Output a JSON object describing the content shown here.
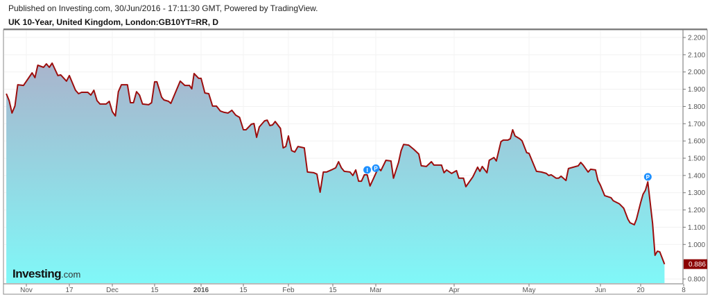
{
  "header": {
    "published": "Published on Investing.com, 30/Jun/2016 - 17:11:30 GMT, Powered by TradingView.",
    "symbol": "UK 10-Year, United Kingdom, London:GB10YT=RR, D"
  },
  "logo": {
    "main": "Investing",
    "suffix": ".com"
  },
  "colors": {
    "line": "#9b0d0d",
    "fill_top": "#a9b4cc",
    "fill_bottom": "#80f8f8",
    "price_label": "#8b0000",
    "marker": "#1e90ff"
  },
  "chart_data": {
    "type": "area",
    "title": "",
    "ylim": [
      0.75,
      2.25
    ],
    "y_ticks": [
      "2.200",
      "2.100",
      "2.000",
      "1.900",
      "1.800",
      "1.700",
      "1.600",
      "1.500",
      "1.400",
      "1.300",
      "1.200",
      "1.100",
      "1.000",
      "0.800"
    ],
    "x_ticks": [
      {
        "label": "Nov",
        "date": "2015-11-02"
      },
      {
        "label": "17",
        "date": "2015-11-17"
      },
      {
        "label": "Dec",
        "date": "2015-12-01"
      },
      {
        "label": "15",
        "date": "2015-12-15"
      },
      {
        "label": "2016",
        "date": "2016-01-04",
        "bold": true
      },
      {
        "label": "15",
        "date": "2016-01-15"
      },
      {
        "label": "Feb",
        "date": "2016-02-01"
      },
      {
        "label": "15",
        "date": "2016-02-15"
      },
      {
        "label": "Mar",
        "date": "2016-03-01"
      },
      {
        "label": "Apr",
        "date": "2016-04-01"
      },
      {
        "label": "May",
        "date": "2016-05-03"
      },
      {
        "label": "Jun",
        "date": "2016-06-01"
      },
      {
        "label": "20",
        "date": "2016-06-20"
      },
      {
        "label": "8",
        "date": "2016-07-08"
      }
    ],
    "last_value": "0.886",
    "grid": true,
    "events": [
      {
        "label": "I",
        "date": "2016-02-27",
        "value": 1.42
      },
      {
        "label": "P",
        "date": "2016-03-01",
        "value": 1.43
      },
      {
        "label": "P",
        "date": "2016-06-23",
        "value": 1.38
      }
    ],
    "points": [
      [
        "2015-10-26",
        1.874
      ],
      [
        "2015-10-27",
        1.834
      ],
      [
        "2015-10-28",
        1.762
      ],
      [
        "2015-10-29",
        1.802
      ],
      [
        "2015-10-30",
        1.926
      ],
      [
        "2015-11-01",
        1.922
      ],
      [
        "2015-11-04",
        1.995
      ],
      [
        "2015-11-05",
        1.967
      ],
      [
        "2015-11-06",
        2.039
      ],
      [
        "2015-11-08",
        2.027
      ],
      [
        "2015-11-09",
        2.047
      ],
      [
        "2015-11-10",
        2.027
      ],
      [
        "2015-11-11",
        2.051
      ],
      [
        "2015-11-13",
        1.979
      ],
      [
        "2015-11-14",
        1.983
      ],
      [
        "2015-11-16",
        1.947
      ],
      [
        "2015-11-17",
        1.979
      ],
      [
        "2015-11-19",
        1.894
      ],
      [
        "2015-11-20",
        1.874
      ],
      [
        "2015-11-21",
        1.882
      ],
      [
        "2015-11-23",
        1.882
      ],
      [
        "2015-11-24",
        1.866
      ],
      [
        "2015-11-25",
        1.894
      ],
      [
        "2015-11-26",
        1.834
      ],
      [
        "2015-11-27",
        1.814
      ],
      [
        "2015-11-29",
        1.814
      ],
      [
        "2015-11-30",
        1.83
      ],
      [
        "2015-12-01",
        1.77
      ],
      [
        "2015-12-02",
        1.745
      ],
      [
        "2015-12-03",
        1.886
      ],
      [
        "2015-12-04",
        1.926
      ],
      [
        "2015-12-06",
        1.926
      ],
      [
        "2015-12-07",
        1.822
      ],
      [
        "2015-12-08",
        1.822
      ],
      [
        "2015-12-09",
        1.886
      ],
      [
        "2015-12-10",
        1.866
      ],
      [
        "2015-12-11",
        1.814
      ],
      [
        "2015-12-13",
        1.81
      ],
      [
        "2015-12-14",
        1.822
      ],
      [
        "2015-12-15",
        1.943
      ],
      [
        "2015-12-16",
        1.943
      ],
      [
        "2015-12-18",
        1.854
      ],
      [
        "2015-12-19",
        1.838
      ],
      [
        "2015-12-21",
        1.83
      ],
      [
        "2015-12-22",
        1.818
      ],
      [
        "2015-12-26",
        1.947
      ],
      [
        "2015-12-28",
        1.922
      ],
      [
        "2015-12-30",
        1.922
      ],
      [
        "2015-12-31",
        1.902
      ],
      [
        "2016-01-01",
        1.991
      ],
      [
        "2016-01-03",
        1.963
      ],
      [
        "2016-01-04",
        1.963
      ],
      [
        "2016-01-05",
        1.878
      ],
      [
        "2016-01-06",
        1.874
      ],
      [
        "2016-01-07",
        1.802
      ],
      [
        "2016-01-08",
        1.802
      ],
      [
        "2016-01-09",
        1.774
      ],
      [
        "2016-01-10",
        1.766
      ],
      [
        "2016-01-11",
        1.762
      ],
      [
        "2016-01-12",
        1.778
      ],
      [
        "2016-01-13",
        1.75
      ],
      [
        "2016-01-14",
        1.737
      ],
      [
        "2016-01-15",
        1.665
      ],
      [
        "2016-01-16",
        1.665
      ],
      [
        "2016-01-18",
        1.697
      ],
      [
        "2016-01-19",
        1.701
      ],
      [
        "2016-01-20",
        1.621
      ],
      [
        "2016-01-21",
        1.681
      ],
      [
        "2016-01-23",
        1.717
      ],
      [
        "2016-01-24",
        1.721
      ],
      [
        "2016-01-25",
        1.689
      ],
      [
        "2016-01-26",
        1.693
      ],
      [
        "2016-01-27",
        1.713
      ],
      [
        "2016-01-29",
        1.673
      ],
      [
        "2016-01-30",
        1.56
      ],
      [
        "2016-01-31",
        1.568
      ],
      [
        "2016-02-01",
        1.629
      ],
      [
        "2016-02-02",
        1.544
      ],
      [
        "2016-02-03",
        1.536
      ],
      [
        "2016-02-04",
        1.568
      ],
      [
        "2016-02-06",
        1.56
      ],
      [
        "2016-02-07",
        1.42
      ],
      [
        "2016-02-09",
        1.416
      ],
      [
        "2016-02-10",
        1.408
      ],
      [
        "2016-02-11",
        1.303
      ],
      [
        "2016-02-12",
        1.42
      ],
      [
        "2016-02-13",
        1.42
      ],
      [
        "2016-02-15",
        1.436
      ],
      [
        "2016-02-16",
        1.444
      ],
      [
        "2016-02-17",
        1.48
      ],
      [
        "2016-02-18",
        1.444
      ],
      [
        "2016-02-19",
        1.424
      ],
      [
        "2016-02-21",
        1.42
      ],
      [
        "2016-02-22",
        1.4
      ],
      [
        "2016-02-23",
        1.432
      ],
      [
        "2016-02-24",
        1.367
      ],
      [
        "2016-02-25",
        1.367
      ],
      [
        "2016-02-26",
        1.404
      ],
      [
        "2016-02-27",
        1.404
      ],
      [
        "2016-02-28",
        1.339
      ],
      [
        "2016-03-01",
        1.412
      ],
      [
        "2016-03-02",
        1.444
      ],
      [
        "2016-03-03",
        1.428
      ],
      [
        "2016-03-05",
        1.488
      ],
      [
        "2016-03-07",
        1.484
      ],
      [
        "2016-03-08",
        1.384
      ],
      [
        "2016-03-10",
        1.476
      ],
      [
        "2016-03-11",
        1.544
      ],
      [
        "2016-03-12",
        1.58
      ],
      [
        "2016-03-14",
        1.576
      ],
      [
        "2016-03-16",
        1.552
      ],
      [
        "2016-03-18",
        1.524
      ],
      [
        "2016-03-19",
        1.456
      ],
      [
        "2016-03-21",
        1.452
      ],
      [
        "2016-03-23",
        1.48
      ],
      [
        "2016-03-24",
        1.46
      ],
      [
        "2016-03-27",
        1.46
      ],
      [
        "2016-03-28",
        1.416
      ],
      [
        "2016-03-29",
        1.432
      ],
      [
        "2016-03-31",
        1.412
      ],
      [
        "2016-04-02",
        1.428
      ],
      [
        "2016-04-03",
        1.384
      ],
      [
        "2016-04-05",
        1.384
      ],
      [
        "2016-04-06",
        1.335
      ],
      [
        "2016-04-09",
        1.392
      ],
      [
        "2016-04-11",
        1.448
      ],
      [
        "2016-04-12",
        1.424
      ],
      [
        "2016-04-13",
        1.452
      ],
      [
        "2016-04-15",
        1.416
      ],
      [
        "2016-04-16",
        1.488
      ],
      [
        "2016-04-18",
        1.504
      ],
      [
        "2016-04-19",
        1.484
      ],
      [
        "2016-04-21",
        1.596
      ],
      [
        "2016-04-22",
        1.605
      ],
      [
        "2016-04-24",
        1.605
      ],
      [
        "2016-04-25",
        1.613
      ],
      [
        "2016-04-26",
        1.665
      ],
      [
        "2016-04-27",
        1.629
      ],
      [
        "2016-04-29",
        1.613
      ],
      [
        "2016-04-30",
        1.601
      ],
      [
        "2016-05-02",
        1.532
      ],
      [
        "2016-05-03",
        1.528
      ],
      [
        "2016-05-06",
        1.424
      ],
      [
        "2016-05-08",
        1.42
      ],
      [
        "2016-05-10",
        1.412
      ],
      [
        "2016-05-11",
        1.4
      ],
      [
        "2016-05-12",
        1.404
      ],
      [
        "2016-05-14",
        1.384
      ],
      [
        "2016-05-15",
        1.384
      ],
      [
        "2016-05-16",
        1.396
      ],
      [
        "2016-05-18",
        1.371
      ],
      [
        "2016-05-19",
        1.44
      ],
      [
        "2016-05-20",
        1.444
      ],
      [
        "2016-05-22",
        1.452
      ],
      [
        "2016-05-23",
        1.456
      ],
      [
        "2016-05-24",
        1.476
      ],
      [
        "2016-05-25",
        1.46
      ],
      [
        "2016-05-27",
        1.42
      ],
      [
        "2016-05-28",
        1.436
      ],
      [
        "2016-05-30",
        1.432
      ],
      [
        "2016-05-31",
        1.371
      ],
      [
        "2016-06-01",
        1.343
      ],
      [
        "2016-06-03",
        1.283
      ],
      [
        "2016-06-04",
        1.279
      ],
      [
        "2016-06-06",
        1.271
      ],
      [
        "2016-06-07",
        1.254
      ],
      [
        "2016-06-10",
        1.235
      ],
      [
        "2016-06-12",
        1.21
      ],
      [
        "2016-06-14",
        1.146
      ],
      [
        "2016-06-15",
        1.126
      ],
      [
        "2016-06-17",
        1.114
      ],
      [
        "2016-06-18",
        1.146
      ],
      [
        "2016-06-20",
        1.243
      ],
      [
        "2016-06-21",
        1.291
      ],
      [
        "2016-06-22",
        1.315
      ],
      [
        "2016-06-23",
        1.363
      ],
      [
        "2016-06-25",
        1.122
      ],
      [
        "2016-06-26",
        0.937
      ],
      [
        "2016-06-27",
        0.961
      ],
      [
        "2016-06-28",
        0.957
      ],
      [
        "2016-06-30",
        0.886
      ]
    ]
  }
}
